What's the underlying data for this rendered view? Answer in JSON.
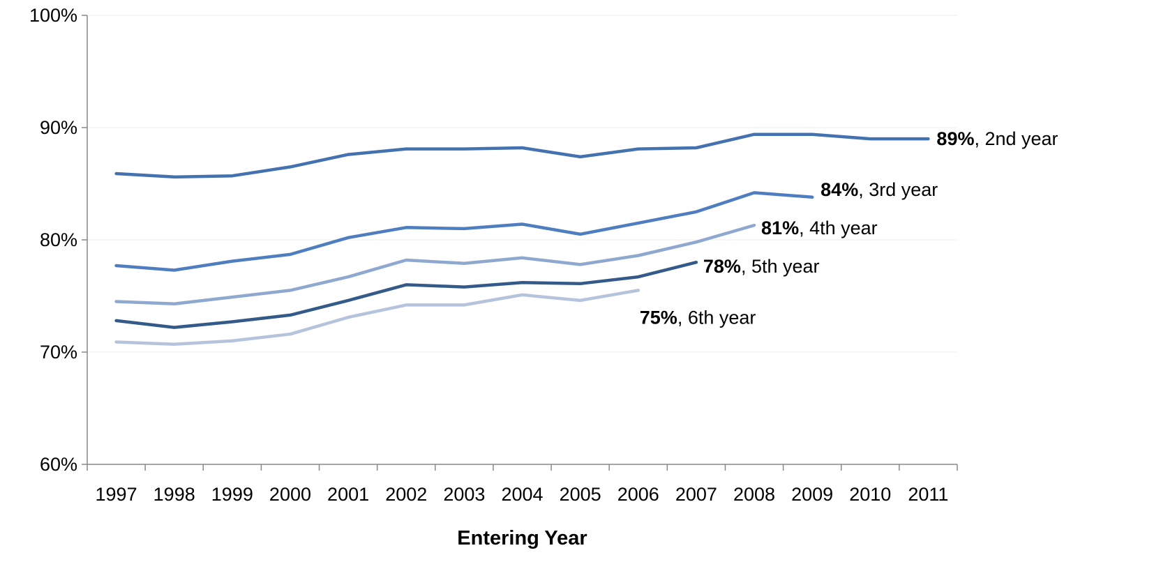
{
  "chart_data": {
    "type": "line",
    "xlabel": "Entering Year",
    "ylabel": "",
    "x": [
      "1997",
      "1998",
      "1999",
      "2000",
      "2001",
      "2002",
      "2003",
      "2004",
      "2005",
      "2006",
      "2007",
      "2008",
      "2009",
      "2010",
      "2011"
    ],
    "ylim": [
      0.6,
      1.0
    ],
    "yticks": [
      {
        "value": 0.6,
        "label": "60%"
      },
      {
        "value": 0.7,
        "label": "70%"
      },
      {
        "value": 0.8,
        "label": "80%"
      },
      {
        "value": 0.9,
        "label": "90%"
      },
      {
        "value": 1.0,
        "label": "100%"
      }
    ],
    "grid": "horizontal",
    "legend": "none",
    "series": [
      {
        "color": "#4472b0",
        "values": [
          0.859,
          0.856,
          0.857,
          0.865,
          0.876,
          0.881,
          0.881,
          0.882,
          0.874,
          0.881,
          0.882,
          0.894,
          0.894,
          0.89,
          0.89
        ],
        "label_value": "89%",
        "label_text": ", 2nd year"
      },
      {
        "color": "#4f7ec0",
        "values": [
          0.777,
          0.773,
          0.781,
          0.787,
          0.802,
          0.811,
          0.81,
          0.814,
          0.805,
          0.815,
          0.825,
          0.842,
          0.838,
          null,
          null
        ],
        "label_value": "84%",
        "label_text": ", 3rd year"
      },
      {
        "color": "#8fa8d0",
        "values": [
          0.745,
          0.743,
          0.749,
          0.755,
          0.767,
          0.782,
          0.779,
          0.784,
          0.778,
          0.786,
          0.798,
          0.813,
          null,
          null,
          null
        ],
        "label_value": "81%",
        "label_text": ", 4th year"
      },
      {
        "color": "#345a8a",
        "values": [
          0.728,
          0.722,
          0.727,
          0.733,
          0.746,
          0.76,
          0.758,
          0.762,
          0.761,
          0.767,
          0.78,
          null,
          null,
          null,
          null
        ],
        "label_value": "78%",
        "label_text": ", 5th year"
      },
      {
        "color": "#b5c3dd",
        "values": [
          0.709,
          0.707,
          0.71,
          0.716,
          0.731,
          0.742,
          0.742,
          0.751,
          0.746,
          0.755,
          null,
          null,
          null,
          null,
          null
        ],
        "label_value": "75%",
        "label_text": ", 6th year"
      }
    ]
  }
}
